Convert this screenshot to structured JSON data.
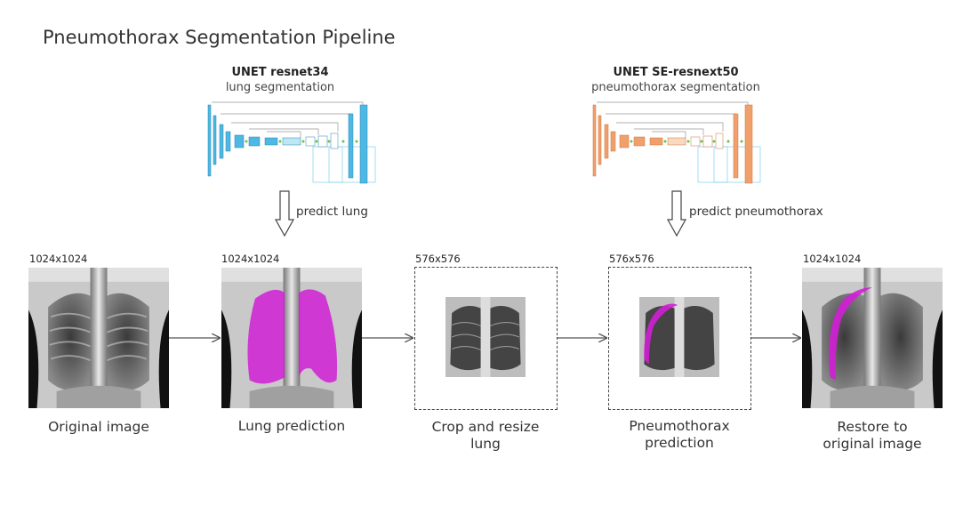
{
  "title": "Pneumothorax Segmentation Pipeline",
  "models": [
    {
      "name": "UNET resnet34",
      "task": "lung segmentation",
      "predict_label": "predict lung",
      "color": "#4db8e3",
      "icon": "unet-architecture-diagram"
    },
    {
      "name": "UNET SE-resnext50",
      "task": "pneumothorax segmentation",
      "predict_label": "predict pneumothorax",
      "color": "#f2a06b",
      "icon": "unet-architecture-diagram"
    }
  ],
  "stages": [
    {
      "resolution": "1024x1024",
      "caption": "Original image"
    },
    {
      "resolution": "1024x1024",
      "caption": "Lung prediction"
    },
    {
      "resolution": "576x576",
      "caption": "Crop and resize\nlung"
    },
    {
      "resolution": "576x576",
      "caption": "Pneumothorax\nprediction"
    },
    {
      "resolution": "1024x1024",
      "caption": "Restore to\noriginal image"
    }
  ],
  "colors": {
    "mask": "#d11fd6",
    "arrow": "#555555"
  }
}
